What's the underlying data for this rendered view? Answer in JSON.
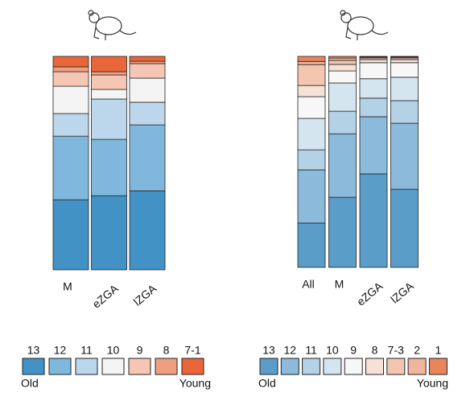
{
  "chart_data": [
    {
      "type": "stacked_bar",
      "categories": [
        "M",
        "eZGA",
        "lZGA"
      ],
      "ylim": [
        0,
        100
      ],
      "legend_ends": [
        "Old",
        "Young"
      ],
      "series": [
        {
          "name": "13",
          "color": "#4292c6",
          "values": [
            32.8,
            34.7,
            37
          ]
        },
        {
          "name": "12",
          "color": "#7fb8dc",
          "values": [
            29.8,
            26.4,
            30.9
          ]
        },
        {
          "name": "11",
          "color": "#bcd7eb",
          "values": [
            10.6,
            18.9,
            10.6
          ]
        },
        {
          "name": "10",
          "color": "#f4f4f4",
          "values": [
            12.8,
            4.5,
            11.3
          ]
        },
        {
          "name": "9",
          "color": "#f5c6b4",
          "values": [
            6.8,
            6.8,
            6.8
          ]
        },
        {
          "name": "8",
          "color": "#ee9f80",
          "values": [
            2.3,
            1.5,
            1.1
          ]
        },
        {
          "name": "7-1",
          "color": "#e8663a",
          "values": [
            4.9,
            7.2,
            2.3
          ]
        }
      ]
    },
    {
      "type": "stacked_bar",
      "categories": [
        "All",
        "M",
        "eZGA",
        "lZGA"
      ],
      "ylim": [
        0,
        100
      ],
      "legend_ends": [
        "Old",
        "Young"
      ],
      "series": [
        {
          "name": "13",
          "color": "#5b9dc9",
          "values": [
            21,
            33.2,
            44.3,
            37
          ]
        },
        {
          "name": "12",
          "color": "#8bbadb",
          "values": [
            25.2,
            30.1,
            27.1,
            31.3
          ]
        },
        {
          "name": "11",
          "color": "#b3d2e6",
          "values": [
            9.5,
            10.7,
            8.8,
            10.7
          ]
        },
        {
          "name": "10",
          "color": "#d5e5f0",
          "values": [
            14.9,
            13.4,
            9.2,
            11.1
          ]
        },
        {
          "name": "9",
          "color": "#f7f7f7",
          "values": [
            10.3,
            5.7,
            7.6,
            6.9
          ]
        },
        {
          "name": "8",
          "color": "#f7e0d6",
          "values": [
            5.3,
            3.1,
            1.5,
            1.5
          ]
        },
        {
          "name": "7-3",
          "color": "#f3c6b2",
          "values": [
            9.9,
            1.9,
            0.8,
            0.8
          ]
        },
        {
          "name": "2",
          "color": "#f0b59b",
          "values": [
            1.5,
            1.1,
            0.4,
            0.4
          ]
        },
        {
          "name": "1",
          "color": "#e9855d",
          "values": [
            2.4,
            0.8,
            0.3,
            0.3
          ]
        }
      ]
    }
  ]
}
